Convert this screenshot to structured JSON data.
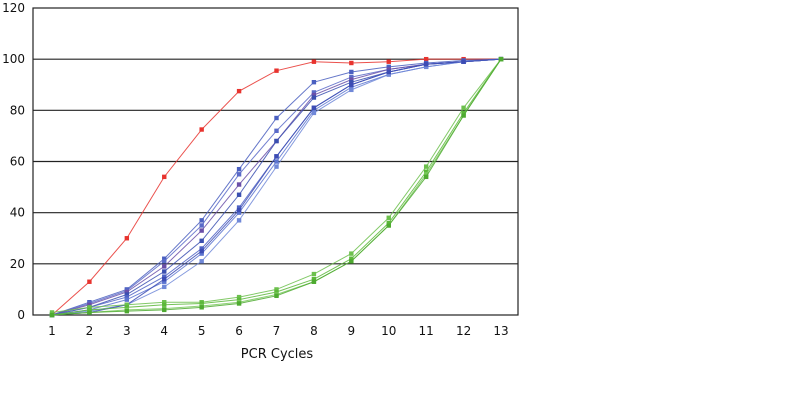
{
  "chart_data": {
    "type": "line",
    "title": "",
    "xlabel": "PCR Cycles",
    "ylabel": "",
    "xlim": [
      1,
      13
    ],
    "ylim": [
      0,
      120
    ],
    "x": [
      1,
      2,
      3,
      4,
      5,
      6,
      7,
      8,
      9,
      10,
      11,
      12,
      13
    ],
    "xticks": [
      "1",
      "2",
      "3",
      "4",
      "5",
      "6",
      "7",
      "8",
      "9",
      "10",
      "11",
      "12",
      "13"
    ],
    "yticks": [
      "0",
      "20",
      "40",
      "60",
      "80",
      "100",
      "120"
    ],
    "grid": "horizontal",
    "legend": "none",
    "series": [
      {
        "color": "#e8332e",
        "values": [
          0,
          13,
          30,
          54,
          72.5,
          87.5,
          95.5,
          99,
          98.5,
          99,
          100,
          100,
          100
        ]
      },
      {
        "color": "#4a5fc0",
        "values": [
          0,
          5,
          10,
          22,
          37,
          57,
          77,
          91,
          95,
          97,
          98.5,
          99.5,
          100
        ]
      },
      {
        "color": "#5a6ac8",
        "values": [
          0,
          4.5,
          9.5,
          21,
          35,
          55,
          72,
          87,
          93,
          96,
          98,
          99,
          100
        ]
      },
      {
        "color": "#6a4fa8",
        "values": [
          0,
          4,
          9,
          19,
          33,
          51,
          68,
          86,
          92,
          96,
          98,
          99,
          100
        ]
      },
      {
        "color": "#3a4fb0",
        "values": [
          0,
          3,
          8,
          17,
          29,
          47,
          68,
          85,
          91,
          95,
          98,
          99,
          100
        ]
      },
      {
        "color": "#4e62c4",
        "values": [
          0,
          3,
          7,
          15,
          26,
          42,
          62,
          81,
          90,
          95,
          98,
          99,
          100
        ]
      },
      {
        "color": "#5c74d0",
        "values": [
          0,
          2,
          6,
          13,
          24,
          40,
          60,
          80,
          89,
          94,
          97,
          99,
          100
        ]
      },
      {
        "color": "#7088d8",
        "values": [
          0,
          1.5,
          4,
          11,
          21,
          37,
          58,
          79,
          88,
          94,
          97,
          99,
          100
        ]
      },
      {
        "color": "#3c4cb4",
        "values": [
          0,
          1,
          4,
          14,
          25,
          41,
          62,
          81,
          90,
          95,
          98,
          99,
          100
        ]
      },
      {
        "color": "#6cc04c",
        "values": [
          1,
          3,
          4,
          5,
          5,
          7,
          10,
          16,
          24,
          38,
          58,
          81,
          100
        ]
      },
      {
        "color": "#5cb83a",
        "values": [
          0,
          2,
          3,
          4,
          4.5,
          6,
          9,
          14,
          22,
          36,
          56,
          79,
          100
        ]
      },
      {
        "color": "#78c85a",
        "values": [
          0,
          1,
          2,
          2.5,
          3.5,
          5,
          8,
          13,
          21,
          35,
          55,
          78,
          100
        ]
      },
      {
        "color": "#4eaa30",
        "values": [
          0,
          1,
          1.5,
          2,
          3,
          4.5,
          7.5,
          13,
          21,
          35,
          54,
          78,
          100
        ]
      }
    ]
  }
}
